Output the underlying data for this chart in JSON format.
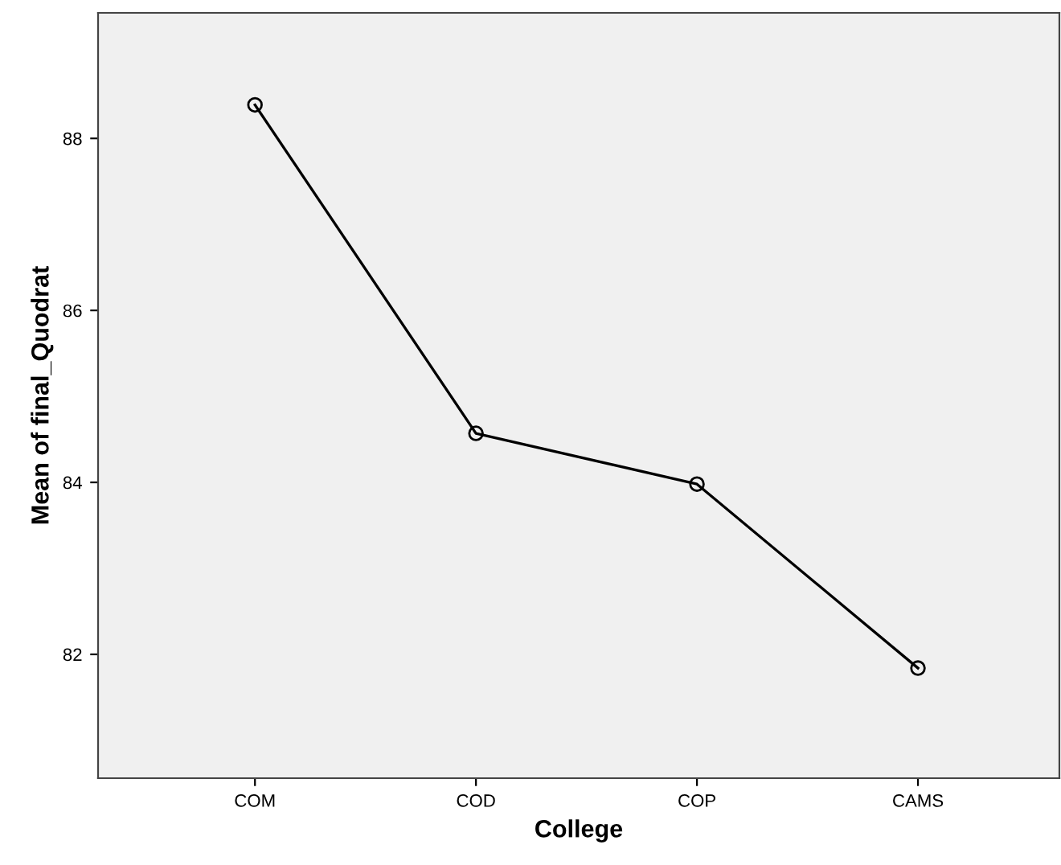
{
  "chart_data": {
    "type": "line",
    "xlabel": "College",
    "ylabel": "Mean of final_Quodrat",
    "categories": [
      "COM",
      "COD",
      "COP",
      "CAMS"
    ],
    "series": [
      {
        "color": "#000000",
        "values": [
          88.39,
          84.57,
          83.98,
          81.84
        ]
      }
    ],
    "ylim": [
      80.56,
      89.46
    ],
    "yticks": [
      82,
      84,
      86,
      88
    ],
    "grid": false,
    "marker": "circle",
    "line_style": "solid"
  }
}
